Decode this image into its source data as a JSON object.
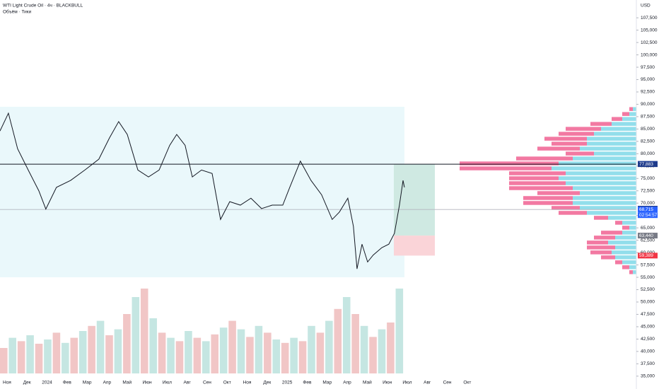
{
  "chart_data": {
    "type": "line",
    "title": "WTI Light Crude Oil · 4ч · BLACKBULL",
    "subtitle": "Объём · Тики",
    "currency": "USD",
    "xlim": [
      -0.35,
      31.45
    ],
    "ylim": [
      32400,
      111100
    ],
    "categories": [
      "Ноя",
      "Дек",
      "2024",
      "Фев",
      "Мар",
      "Апр",
      "Май",
      "Июн",
      "Июл",
      "Авг",
      "Сен",
      "Окт",
      "Ноя",
      "Дек",
      "2025",
      "Фев",
      "Мар",
      "Апр",
      "Май",
      "Июн",
      "Июл",
      "Авг",
      "Сен",
      "Окт"
    ],
    "yticks": [
      {
        "value": 35000,
        "label": "35,000"
      },
      {
        "value": 37500,
        "label": "37,500"
      },
      {
        "value": 40000,
        "label": "40,000"
      },
      {
        "value": 42500,
        "label": "42,500"
      },
      {
        "value": 45000,
        "label": "45,000"
      },
      {
        "value": 47500,
        "label": "47,500"
      },
      {
        "value": 50000,
        "label": "50,000"
      },
      {
        "value": 52500,
        "label": "52,500"
      },
      {
        "value": 55000,
        "label": "55,000"
      },
      {
        "value": 57500,
        "label": "57,500"
      },
      {
        "value": 60000,
        "label": "60,000"
      },
      {
        "value": 62500,
        "label": "62,500"
      },
      {
        "value": 65000,
        "label": "65,000"
      },
      {
        "value": 67500,
        "label": "67,500"
      },
      {
        "value": 70000,
        "label": "70,000"
      },
      {
        "value": 72500,
        "label": "72,500"
      },
      {
        "value": 75000,
        "label": "75,000"
      },
      {
        "value": 77500,
        "label": "77,500"
      },
      {
        "value": 80000,
        "label": "80,000"
      },
      {
        "value": 82500,
        "label": "82,500"
      },
      {
        "value": 85000,
        "label": "85,000"
      },
      {
        "value": 87500,
        "label": "87,500"
      },
      {
        "value": 90000,
        "label": "90,000"
      },
      {
        "value": 92500,
        "label": "92,500"
      },
      {
        "value": 95000,
        "label": "95,000"
      },
      {
        "value": 97500,
        "label": "97,500"
      },
      {
        "value": 100000,
        "label": "100,000"
      },
      {
        "value": 102500,
        "label": "102,500"
      },
      {
        "value": 105000,
        "label": "105,000"
      },
      {
        "value": 107500,
        "label": "107,500"
      }
    ],
    "series": [
      {
        "name": "WTI",
        "color": "#131722",
        "x": [
          -0.35,
          0.07,
          0.53,
          1.06,
          1.59,
          1.94,
          2.47,
          3.18,
          3.89,
          4.59,
          5.12,
          5.58,
          6.01,
          6.54,
          7.07,
          7.6,
          8.13,
          8.48,
          8.9,
          9.26,
          9.72,
          10.25,
          10.67,
          11.13,
          11.66,
          12.19,
          12.72,
          13.25,
          13.78,
          14.13,
          14.66,
          15.19,
          15.72,
          16.25,
          16.61,
          17.03,
          17.31,
          17.49,
          17.74,
          18.02,
          18.3,
          18.73,
          19.08,
          19.36,
          19.61,
          19.79,
          19.86
        ],
        "values": [
          84600,
          88200,
          81000,
          76700,
          72500,
          68800,
          73200,
          74600,
          76700,
          78900,
          83200,
          86500,
          83900,
          76700,
          75300,
          76700,
          81700,
          83900,
          81700,
          75300,
          76700,
          76000,
          66700,
          70300,
          69600,
          71000,
          68900,
          69600,
          69600,
          73200,
          78500,
          74600,
          71700,
          66700,
          68200,
          71000,
          65300,
          56700,
          61700,
          58100,
          59500,
          61000,
          61700,
          63900,
          69600,
          74600,
          73200
        ]
      }
    ],
    "volume": {
      "color": "#e8a0a0",
      "values": [
        300,
        420,
        380,
        450,
        350,
        400,
        480,
        360,
        420,
        500,
        560,
        620,
        450,
        520,
        700,
        900,
        1000,
        650,
        480,
        420,
        380,
        500,
        420,
        380,
        460,
        540,
        620,
        520,
        430,
        560,
        480,
        400,
        360,
        420,
        380,
        560,
        480,
        620,
        760,
        900,
        700,
        560,
        430,
        520,
        600,
        1000
      ]
    },
    "hlines": [
      {
        "value": 77883,
        "color": "#131722"
      },
      {
        "value": 68715,
        "color": "#b2b5be"
      }
    ],
    "range_box": {
      "xlim": [
        -0.35,
        19.86
      ],
      "ylim": [
        55000,
        89500
      ],
      "color": "#eaf8fb"
    },
    "position": {
      "xlim": [
        19.33,
        21.38
      ],
      "target": 77883,
      "entry": 63440,
      "stop": 59389
    },
    "profile": {
      "levels": [
        89000,
        88000,
        87000,
        86000,
        85000,
        84000,
        83000,
        82000,
        81000,
        80000,
        79000,
        78000,
        77000,
        76000,
        75000,
        74000,
        73000,
        72000,
        71000,
        70000,
        69000,
        68000,
        67000,
        66000,
        65000,
        64000,
        63000,
        62000,
        61000,
        60000,
        59000,
        58000,
        57000,
        56000
      ],
      "buy": [
        5,
        10,
        20,
        35,
        50,
        60,
        70,
        70,
        80,
        60,
        90,
        110,
        120,
        100,
        110,
        100,
        90,
        80,
        90,
        90,
        80,
        70,
        40,
        20,
        10,
        20,
        30,
        40,
        30,
        35,
        30,
        20,
        10,
        5
      ],
      "sell": [
        5,
        10,
        15,
        30,
        50,
        50,
        60,
        50,
        60,
        40,
        80,
        140,
        130,
        80,
        70,
        80,
        90,
        60,
        70,
        70,
        40,
        40,
        20,
        10,
        10,
        30,
        30,
        30,
        40,
        30,
        20,
        10,
        10,
        5
      ],
      "buy_color": "#7fd8e8",
      "sell_color": "#f06292"
    },
    "price_labels": [
      {
        "value": 77944,
        "label": "77,944",
        "color": "#131722"
      },
      {
        "value": 77925,
        "label": "77,925",
        "color": "#2962ff"
      },
      {
        "value": 77883,
        "label": "77,883",
        "color": "#1e3a8a"
      },
      {
        "value": 68883,
        "label": "68,883",
        "color": "#1e3a8a"
      },
      {
        "value": 68715,
        "label": "68,715",
        "color": "#2962ff"
      },
      {
        "value": 63440,
        "label": "63,440",
        "color": "#787b86"
      },
      {
        "value": 59389,
        "label": "59,389",
        "color": "#f23645"
      }
    ],
    "countdown": "02:54:57"
  }
}
